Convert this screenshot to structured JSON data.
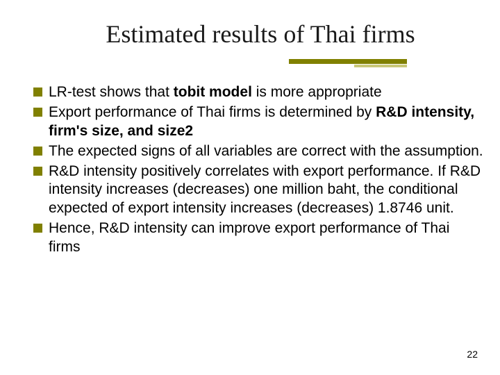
{
  "slide": {
    "title": "Estimated results of Thai firms",
    "title_color": "#1a1a1a",
    "title_fontsize": 36,
    "title_fontfamily": "Times New Roman",
    "accent_color_thick": "#808000",
    "accent_color_thin": "#c9c878",
    "bullet_color": "#808000",
    "bullet_size": 13,
    "body_fontsize": 21,
    "body_color": "#000000",
    "background": "#ffffff",
    "page_number": "22",
    "bullets": [
      {
        "pre": "LR-test shows that ",
        "bold1": "tobit model",
        "post": " is more appropriate"
      },
      {
        "pre": "Export performance of Thai firms is determined by ",
        "bold1": "R&D intensity, firm's size, and size2",
        "post": ""
      },
      {
        "pre": "The expected signs of all variables are correct with the assumption.",
        "bold1": "",
        "post": ""
      },
      {
        "pre": "R&D intensity positively correlates with export performance. If R&D intensity increases (decreases) one million baht, the conditional expected of export intensity increases (decreases) 1.8746 unit.",
        "bold1": "",
        "post": ""
      },
      {
        "pre": "Hence, R&D intensity can improve export performance of Thai firms",
        "bold1": "",
        "post": ""
      }
    ]
  }
}
